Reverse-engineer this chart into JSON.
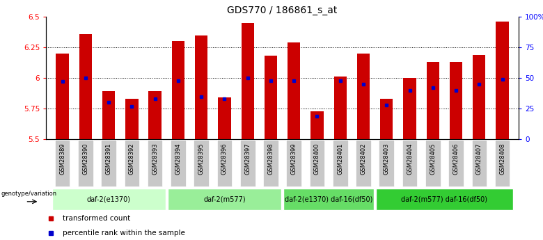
{
  "title": "GDS770 / 186861_s_at",
  "samples": [
    "GSM28389",
    "GSM28390",
    "GSM28391",
    "GSM28392",
    "GSM28393",
    "GSM28394",
    "GSM28395",
    "GSM28396",
    "GSM28397",
    "GSM28398",
    "GSM28399",
    "GSM28400",
    "GSM28401",
    "GSM28402",
    "GSM28403",
    "GSM28404",
    "GSM28405",
    "GSM28406",
    "GSM28407",
    "GSM28408"
  ],
  "transformed_count": [
    6.2,
    6.36,
    5.89,
    5.83,
    5.89,
    6.3,
    6.35,
    5.84,
    6.45,
    6.18,
    6.29,
    5.73,
    6.01,
    6.2,
    5.83,
    6.0,
    6.13,
    6.13,
    6.19,
    6.46
  ],
  "percentile_rank": [
    47,
    50,
    30,
    27,
    33,
    48,
    35,
    33,
    50,
    48,
    48,
    19,
    48,
    45,
    28,
    40,
    42,
    40,
    45,
    49
  ],
  "ylim_left": [
    5.5,
    6.5
  ],
  "ylim_right": [
    0,
    100
  ],
  "yticks_left": [
    5.5,
    5.75,
    6.0,
    6.25,
    6.5
  ],
  "ytick_labels_left": [
    "5.5",
    "5.75",
    "6",
    "6.25",
    "6.5"
  ],
  "yticks_right": [
    0,
    25,
    50,
    75,
    100
  ],
  "ytick_labels_right": [
    "0",
    "25",
    "50",
    "75",
    "100%"
  ],
  "bar_color": "#cc0000",
  "percentile_color": "#0000cc",
  "genotype_groups": [
    {
      "label": "daf-2(e1370)",
      "start": 0,
      "end": 5,
      "color": "#ccffcc"
    },
    {
      "label": "daf-2(m577)",
      "start": 5,
      "end": 10,
      "color": "#99ee99"
    },
    {
      "label": "daf-2(e1370) daf-16(df50)",
      "start": 10,
      "end": 14,
      "color": "#66dd66"
    },
    {
      "label": "daf-2(m577) daf-16(df50)",
      "start": 14,
      "end": 20,
      "color": "#33cc33"
    }
  ],
  "legend_items": [
    {
      "label": "transformed count",
      "color": "#cc0000"
    },
    {
      "label": "percentile rank within the sample",
      "color": "#0000cc"
    }
  ],
  "bar_width": 0.55,
  "base_value": 5.5,
  "xlabel_gray": "#cccccc",
  "sample_bg_color": "#c8c8c8"
}
